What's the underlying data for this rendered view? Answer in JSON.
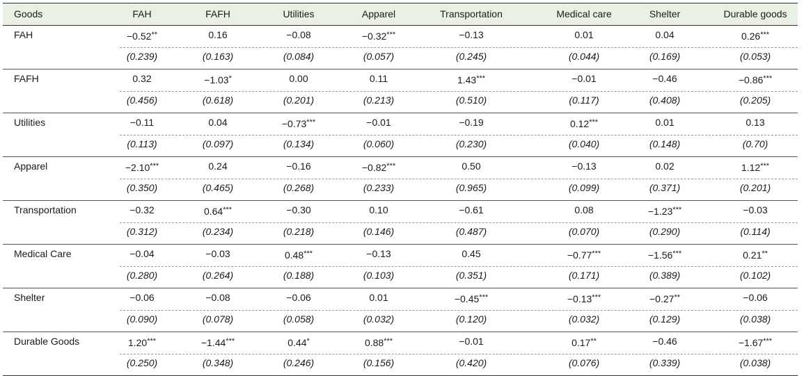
{
  "table": {
    "columns": [
      "Goods",
      "FAH",
      "FAFH",
      "Utilities",
      "Apparel",
      "Transportation",
      "Medical care",
      "Shelter",
      "Durable goods"
    ],
    "rows": [
      {
        "label": "FAH",
        "coef": [
          [
            "−0.52",
            "**"
          ],
          [
            "0.16",
            ""
          ],
          [
            "−0.08",
            ""
          ],
          [
            "−0.32",
            "***"
          ],
          [
            "−0.13",
            ""
          ],
          [
            "0.01",
            ""
          ],
          [
            "0.04",
            ""
          ],
          [
            "0.26",
            "***"
          ]
        ],
        "se": [
          "(0.239)",
          "(0.163)",
          "(0.084)",
          "(0.057)",
          "(0.245)",
          "(0.044)",
          "(0.169)",
          "(0.053)"
        ]
      },
      {
        "label": "FAFH",
        "coef": [
          [
            "0.32",
            ""
          ],
          [
            "−1.03",
            "*"
          ],
          [
            "0.00",
            ""
          ],
          [
            "0.11",
            ""
          ],
          [
            "1.43",
            "***"
          ],
          [
            "−0.01",
            ""
          ],
          [
            "−0.46",
            ""
          ],
          [
            "−0.86",
            "***"
          ]
        ],
        "se": [
          "(0.456)",
          "(0.618)",
          "(0.201)",
          "(0.213)",
          "(0.510)",
          "(0.117)",
          "(0.408)",
          "(0.205)"
        ]
      },
      {
        "label": "Utilities",
        "coef": [
          [
            "−0.11",
            ""
          ],
          [
            "0.04",
            ""
          ],
          [
            "−0.73",
            "***"
          ],
          [
            "−0.01",
            ""
          ],
          [
            "−0.19",
            ""
          ],
          [
            "0.12",
            "***"
          ],
          [
            "0.01",
            ""
          ],
          [
            "0.13",
            ""
          ]
        ],
        "se": [
          "(0.113)",
          "(0.097)",
          "(0.134)",
          "(0.060)",
          "(0.230)",
          "(0.040)",
          "(0.148)",
          "(0.70)"
        ]
      },
      {
        "label": "Apparel",
        "coef": [
          [
            "−2.10",
            "***"
          ],
          [
            "0.24",
            ""
          ],
          [
            "−0.16",
            ""
          ],
          [
            "−0.82",
            "***"
          ],
          [
            "0.50",
            ""
          ],
          [
            "−0.13",
            ""
          ],
          [
            "0.02",
            ""
          ],
          [
            "1.12",
            "***"
          ]
        ],
        "se": [
          "(0.350)",
          "(0.465)",
          "(0.268)",
          "(0.233)",
          "(0.965)",
          "(0.099)",
          "(0.371)",
          "(0.201)"
        ]
      },
      {
        "label": "Transportation",
        "coef": [
          [
            "−0.32",
            ""
          ],
          [
            "0.64",
            "***"
          ],
          [
            "−0.30",
            ""
          ],
          [
            "0.10",
            ""
          ],
          [
            "−0.61",
            ""
          ],
          [
            "0.08",
            ""
          ],
          [
            "−1.23",
            "***"
          ],
          [
            "−0.03",
            ""
          ]
        ],
        "se": [
          "(0.312)",
          "(0.234)",
          "(0.218)",
          "(0.146)",
          "(0.487)",
          "(0.070)",
          "(0.290)",
          "(0.114)"
        ]
      },
      {
        "label": "Medical Care",
        "coef": [
          [
            "−0.04",
            ""
          ],
          [
            "−0.03",
            ""
          ],
          [
            "0.48",
            "***"
          ],
          [
            "−0.13",
            ""
          ],
          [
            "0.45",
            ""
          ],
          [
            "−0.77",
            "***"
          ],
          [
            "−1.56",
            "***"
          ],
          [
            "0.21",
            "**"
          ]
        ],
        "se": [
          "(0.280)",
          "(0.264)",
          "(0.188)",
          "(0.103)",
          "(0.351)",
          "(0.171)",
          "(0.389)",
          "(0.102)"
        ]
      },
      {
        "label": "Shelter",
        "coef": [
          [
            "−0.06",
            ""
          ],
          [
            "−0.08",
            ""
          ],
          [
            "−0.06",
            ""
          ],
          [
            "0.01",
            ""
          ],
          [
            "−0.45",
            "***"
          ],
          [
            "−0.13",
            "***"
          ],
          [
            "−0.27",
            "**"
          ],
          [
            "−0.06",
            ""
          ]
        ],
        "se": [
          "(0.090)",
          "(0.078)",
          "(0.058)",
          "(0.032)",
          "(0.120)",
          "(0.032)",
          "(0.129)",
          "(0.038)"
        ]
      },
      {
        "label": "Durable Goods",
        "coef": [
          [
            "1.20",
            "***"
          ],
          [
            "−1.44",
            "***"
          ],
          [
            "0.44",
            "*"
          ],
          [
            "0.88",
            "***"
          ],
          [
            "−0.01",
            ""
          ],
          [
            "0.17",
            "**"
          ],
          [
            "−0.46",
            ""
          ],
          [
            "−1.67",
            "***"
          ]
        ],
        "se": [
          "(0.250)",
          "(0.348)",
          "(0.246)",
          "(0.156)",
          "(0.420)",
          "(0.076)",
          "(0.339)",
          "(0.038)"
        ]
      }
    ]
  }
}
